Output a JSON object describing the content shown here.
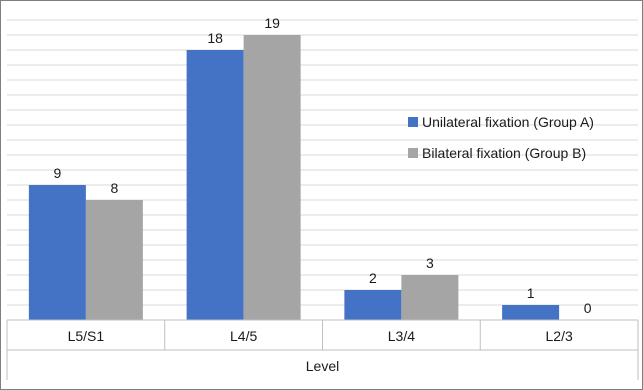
{
  "chart_data": {
    "type": "bar",
    "title": "",
    "xlabel": "Level",
    "ylabel": "",
    "categories": [
      "L5/S1",
      "L4/5",
      "L3/4",
      "L2/3"
    ],
    "series": [
      {
        "name": "Unilateral fixation (Group A)",
        "values": [
          9,
          18,
          2,
          1
        ],
        "color": "#4472c4"
      },
      {
        "name": "Bilateral fixation (Group B)",
        "values": [
          8,
          19,
          3,
          0
        ],
        "color": "#a5a5a5"
      }
    ],
    "ylim": [
      0,
      20
    ],
    "grid": true,
    "legend_position": "right",
    "data_labels": true,
    "y_tick_labels_shown": false
  }
}
